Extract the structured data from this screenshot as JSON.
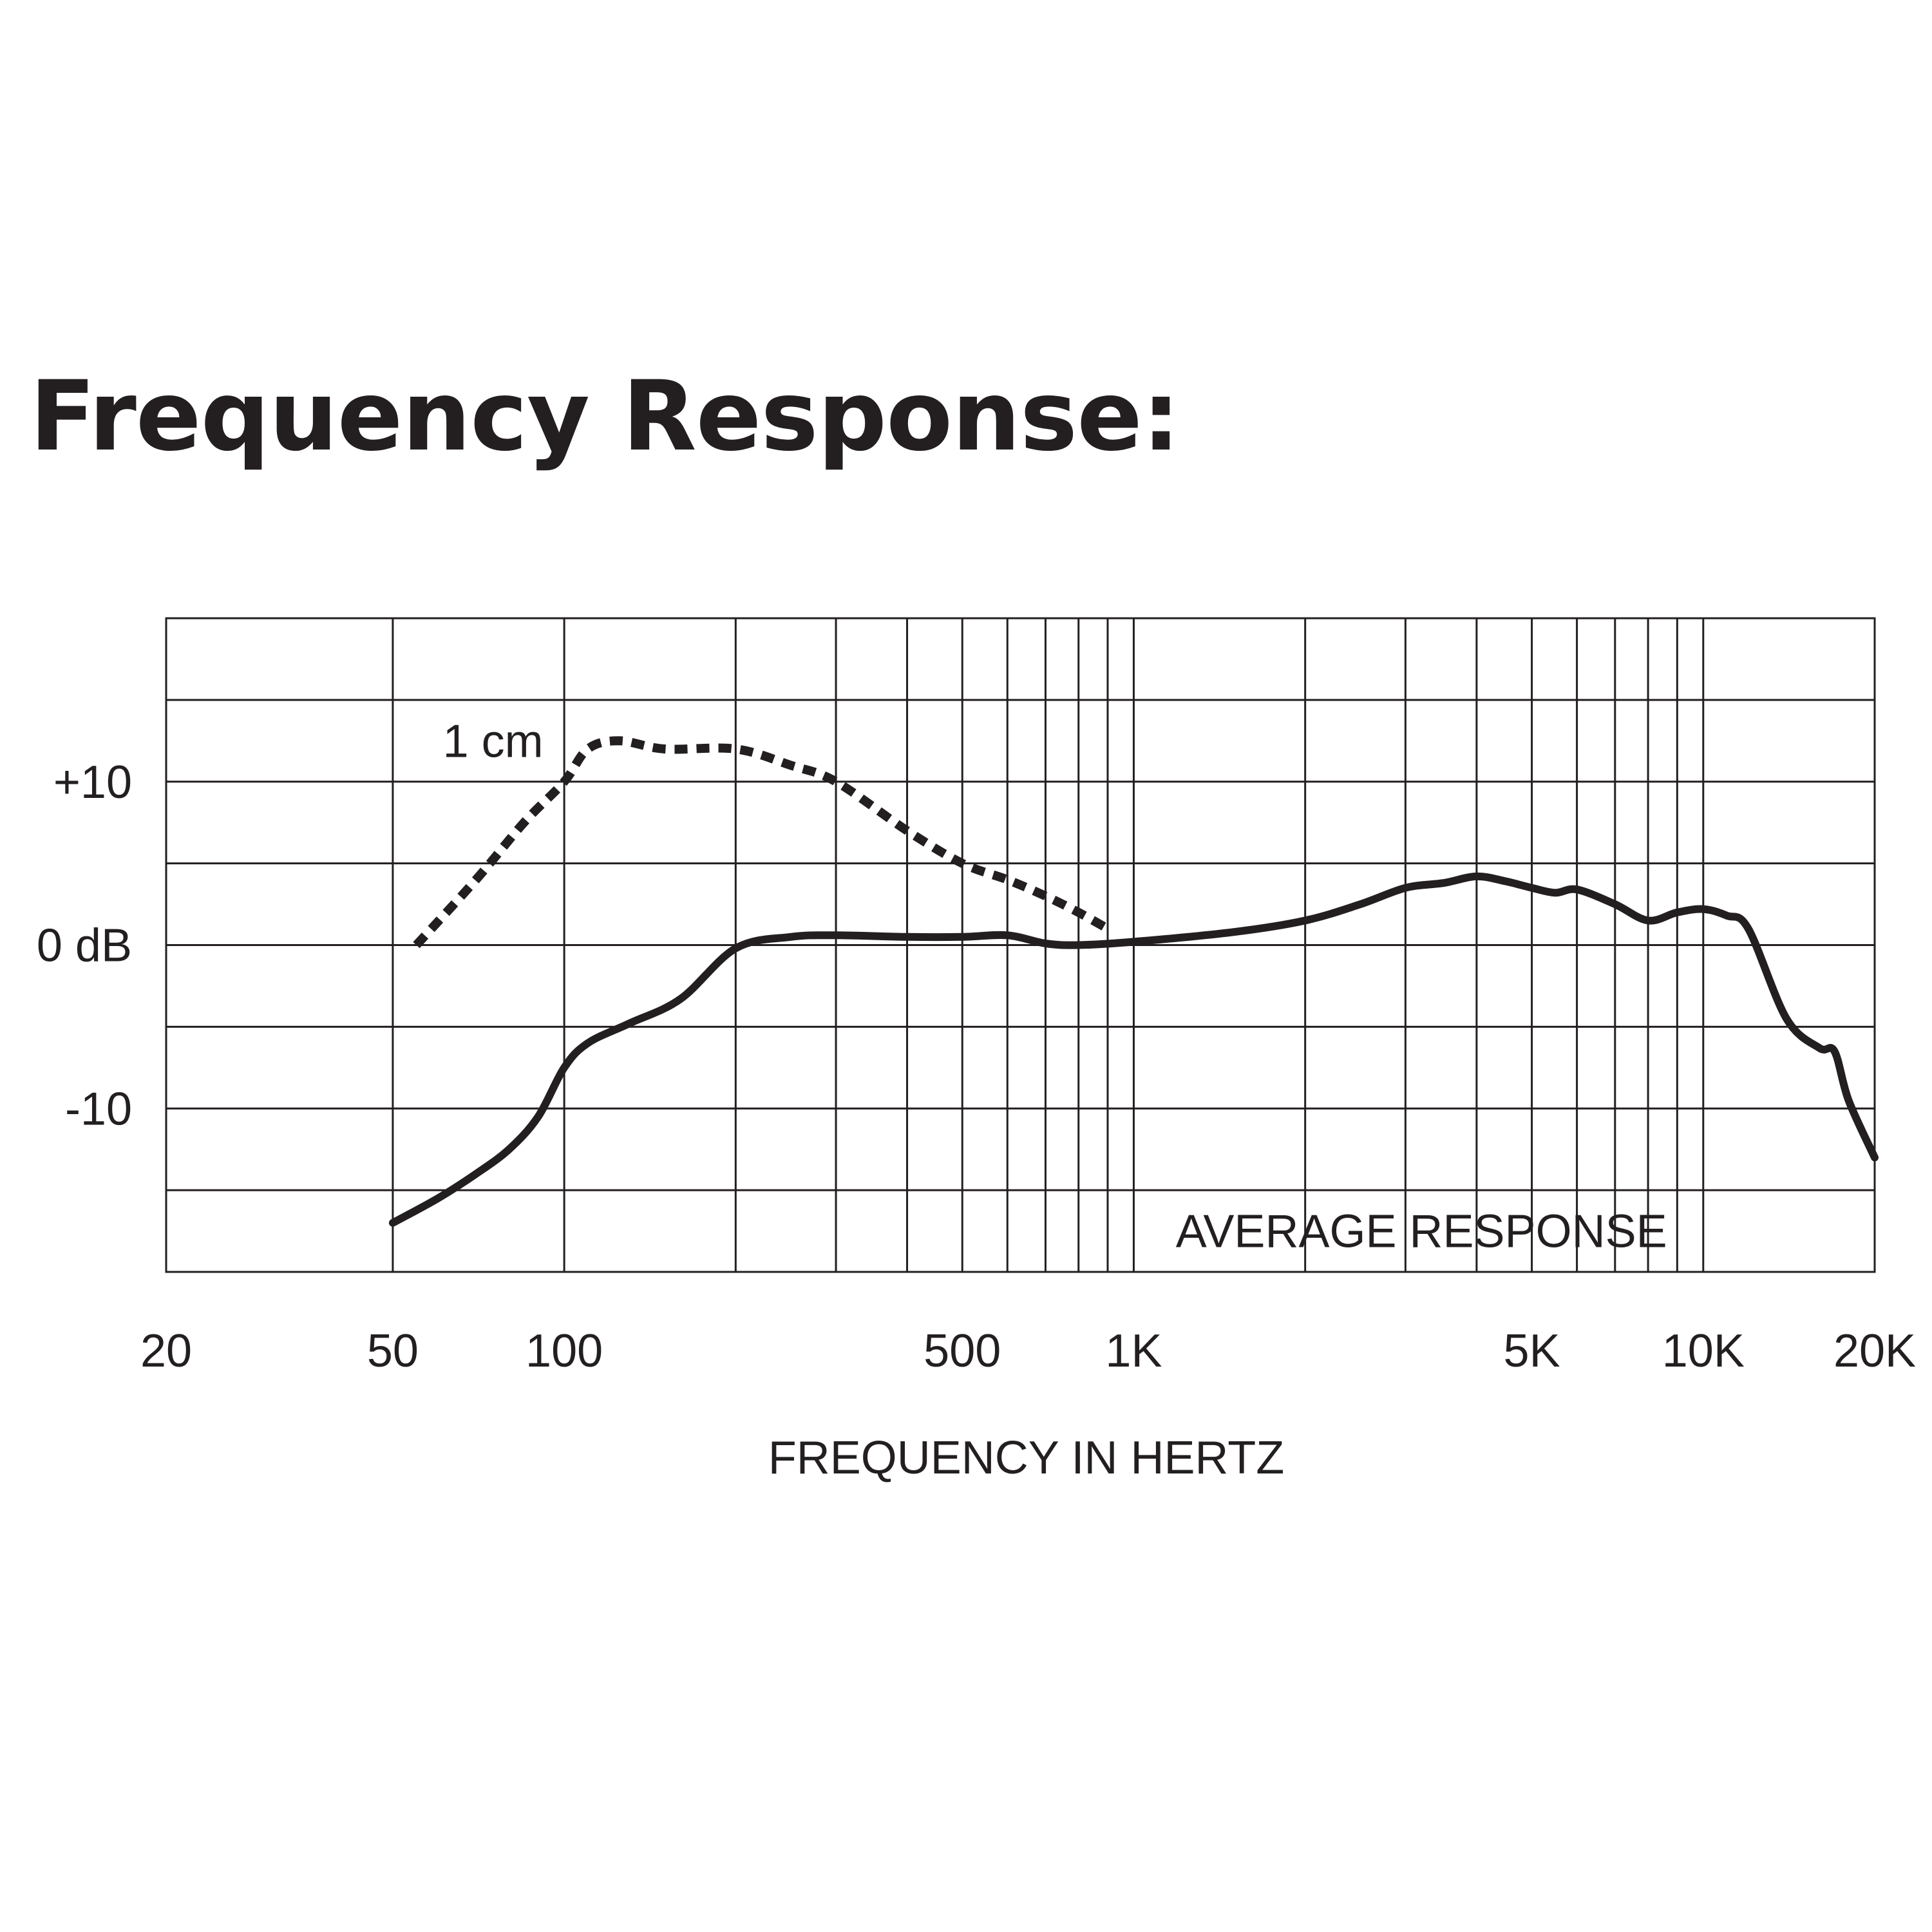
{
  "page": {
    "title": "Frequency Response:"
  },
  "colors": {
    "ink": "#231f20",
    "background": "#ffffff"
  },
  "chart_data": {
    "type": "line",
    "xscale": "log",
    "xlim": [
      20,
      20000
    ],
    "ylim": [
      -20,
      20
    ],
    "grid": true,
    "xlabel": "FREQUENCY IN HERTZ",
    "ylabel": "",
    "x_ticks": [
      {
        "value": 20,
        "label": "20"
      },
      {
        "value": 50,
        "label": "50"
      },
      {
        "value": 100,
        "label": "100"
      },
      {
        "value": 500,
        "label": "500"
      },
      {
        "value": 1000,
        "label": "1K"
      },
      {
        "value": 5000,
        "label": "5K"
      },
      {
        "value": 10000,
        "label": "10K"
      },
      {
        "value": 20000,
        "label": "20K"
      }
    ],
    "y_ticks": [
      {
        "value": 10,
        "label": "+10"
      },
      {
        "value": 0,
        "label": "0 dB"
      },
      {
        "value": -10,
        "label": "-10"
      }
    ],
    "x_gridlines": [
      50,
      100,
      200,
      300,
      400,
      500,
      600,
      700,
      800,
      900,
      1000,
      2000,
      3000,
      4000,
      5000,
      6000,
      7000,
      8000,
      9000,
      10000
    ],
    "y_gridlines": [
      -15,
      -10,
      -5,
      0,
      5,
      10,
      15
    ],
    "series": [
      {
        "name": "AVERAGE RESPONSE",
        "style": "solid",
        "x": [
          50,
          60,
          70,
          80,
          90,
          100,
          110,
          130,
          160,
          200,
          250,
          300,
          400,
          500,
          600,
          700,
          800,
          1000,
          1500,
          2000,
          2500,
          3000,
          3500,
          4000,
          4500,
          5000,
          5500,
          6000,
          7000,
          8000,
          9000,
          10000,
          11000,
          12000,
          14000,
          16000,
          17000,
          18000,
          20000
        ],
        "y": [
          -17,
          -15.5,
          -14,
          -12.5,
          -10.5,
          -7.5,
          -6,
          -4.8,
          -3.3,
          -0.2,
          0.5,
          0.6,
          0.5,
          0.5,
          0.6,
          0.1,
          0.0,
          0.2,
          0.8,
          1.5,
          2.5,
          3.5,
          3.8,
          4.2,
          3.9,
          3.5,
          3.2,
          3.4,
          2.5,
          1.5,
          2.0,
          2.2,
          1.8,
          1.0,
          -4.5,
          -6.3,
          -6.5,
          -9.5,
          -13
        ]
      },
      {
        "name": "1 cm",
        "style": "dotted",
        "x": [
          55,
          70,
          85,
          100,
          110,
          125,
          150,
          200,
          250,
          300,
          400,
          500,
          600,
          700,
          800,
          900
        ],
        "y": [
          0,
          4,
          7.5,
          10,
          12,
          12.5,
          12,
          12,
          11,
          10,
          7,
          5,
          4,
          3,
          2,
          1
        ]
      }
    ],
    "annotations": [
      {
        "text": "1 cm",
        "x": 75,
        "y": 12.5
      },
      {
        "text": "AVERAGE RESPONSE",
        "x": 3200,
        "y": -17.5
      }
    ]
  }
}
